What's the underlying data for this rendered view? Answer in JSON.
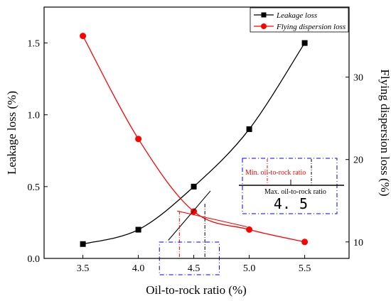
{
  "chart_data": {
    "type": "line",
    "xlabel": "Oil-to-rock ratio (%)",
    "ylabel_left": "Leakage loss (%)",
    "ylabel_right": "Flying dispersion loss (%)",
    "x_ticks": [
      "3.5",
      "4.0",
      "4.5",
      "5.0",
      "5.5"
    ],
    "y_left_ticks": [
      "0.0",
      "0.5",
      "1.0",
      "1.5"
    ],
    "y_right_ticks": [
      "10",
      "20",
      "30"
    ],
    "xlim": [
      3.15,
      5.9
    ],
    "ylim_left": [
      0,
      1.75
    ],
    "ylim_right": [
      8,
      38.5
    ],
    "grid": false,
    "legend_position": "top-right",
    "series": [
      {
        "name": "Leakage loss",
        "axis": "left",
        "color": "#000000",
        "marker": "square",
        "x": [
          3.5,
          4.0,
          4.5,
          5.0,
          5.5
        ],
        "y": [
          0.1,
          0.2,
          0.5,
          0.9,
          1.5
        ]
      },
      {
        "name": "Flying dispersion loss",
        "axis": "right",
        "color": "#ff0000",
        "marker": "circle",
        "x": [
          3.5,
          4.0,
          4.5,
          5.0,
          5.5
        ],
        "y": [
          35,
          22.5,
          13.7,
          11.5,
          10
        ]
      }
    ],
    "annotations": {
      "min_ratio_label": "Min. oil-to-rock ratio",
      "max_ratio_label": "Max. oil-to-rock ratio",
      "value_label": "4. 5",
      "min_ratio_x": 4.37,
      "max_ratio_x": 4.6,
      "min_color": "#ff0000",
      "max_color": "#000000",
      "box_color": "#0000ff"
    }
  }
}
